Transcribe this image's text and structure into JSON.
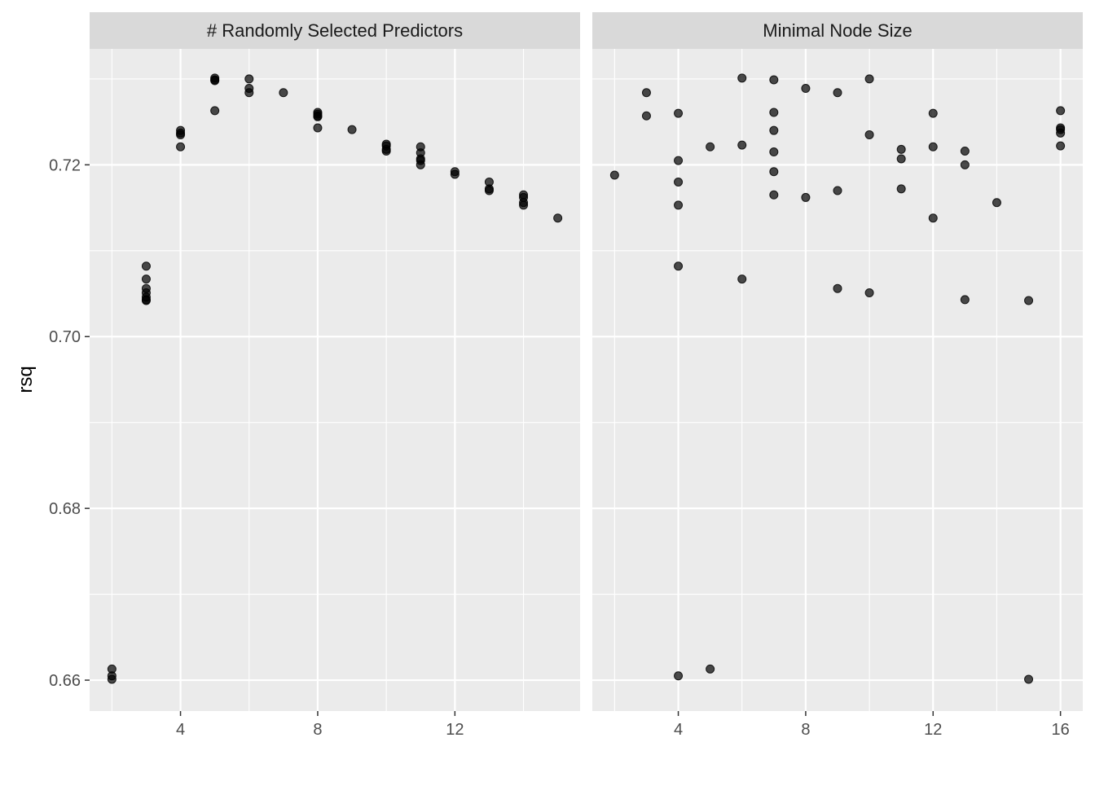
{
  "chart_data": [
    {
      "type": "scatter",
      "facet": "# Randomly Selected Predictors",
      "xlabel": "",
      "ylabel": "rsq",
      "xlim": [
        1.35,
        15.65
      ],
      "ylim": [
        0.6564,
        0.7335
      ],
      "xticks": [
        "4",
        "8",
        "12"
      ],
      "yticks": [
        "0.66",
        "0.68",
        "0.70",
        "0.72"
      ],
      "grid": true,
      "points": [
        [
          2,
          0.6613
        ],
        [
          2,
          0.6605
        ],
        [
          2,
          0.6601
        ],
        [
          3,
          0.7082
        ],
        [
          3,
          0.7067
        ],
        [
          3,
          0.7056
        ],
        [
          3,
          0.7051
        ],
        [
          3,
          0.7046
        ],
        [
          3,
          0.7043
        ],
        [
          3,
          0.7042
        ],
        [
          4,
          0.724
        ],
        [
          4,
          0.7237
        ],
        [
          4,
          0.7235
        ],
        [
          4,
          0.7221
        ],
        [
          5,
          0.7301
        ],
        [
          5,
          0.7299
        ],
        [
          5,
          0.7298
        ],
        [
          5,
          0.7263
        ],
        [
          6,
          0.73
        ],
        [
          6,
          0.7289
        ],
        [
          6,
          0.7284
        ],
        [
          7,
          0.7284
        ],
        [
          8,
          0.7261
        ],
        [
          8,
          0.7259
        ],
        [
          8,
          0.7257
        ],
        [
          8,
          0.7256
        ],
        [
          8,
          0.7243
        ],
        [
          9,
          0.7241
        ],
        [
          10,
          0.7224
        ],
        [
          10,
          0.7222
        ],
        [
          10,
          0.7218
        ],
        [
          10,
          0.7216
        ],
        [
          11,
          0.7221
        ],
        [
          11,
          0.7214
        ],
        [
          11,
          0.7207
        ],
        [
          11,
          0.7205
        ],
        [
          11,
          0.72
        ],
        [
          12,
          0.7192
        ],
        [
          12,
          0.7189
        ],
        [
          13,
          0.718
        ],
        [
          13,
          0.7172
        ],
        [
          13,
          0.717
        ],
        [
          14,
          0.7165
        ],
        [
          14,
          0.7162
        ],
        [
          14,
          0.7156
        ],
        [
          14,
          0.7153
        ],
        [
          15,
          0.7138
        ]
      ]
    },
    {
      "type": "scatter",
      "facet": "Minimal Node Size",
      "xlabel": "",
      "ylabel": "rsq",
      "xlim": [
        1.3,
        16.7
      ],
      "ylim": [
        0.6564,
        0.7335
      ],
      "xticks": [
        "4",
        "8",
        "12",
        "16"
      ],
      "yticks": [
        "0.66",
        "0.68",
        "0.70",
        "0.72"
      ],
      "grid": true,
      "points": [
        [
          2,
          0.7188
        ],
        [
          3,
          0.7284
        ],
        [
          3,
          0.7257
        ],
        [
          4,
          0.726
        ],
        [
          4,
          0.7205
        ],
        [
          4,
          0.718
        ],
        [
          4,
          0.7153
        ],
        [
          4,
          0.7082
        ],
        [
          4,
          0.6605
        ],
        [
          5,
          0.7221
        ],
        [
          5,
          0.6613
        ],
        [
          6,
          0.7301
        ],
        [
          6,
          0.7223
        ],
        [
          6,
          0.7067
        ],
        [
          7,
          0.7299
        ],
        [
          7,
          0.7261
        ],
        [
          7,
          0.724
        ],
        [
          7,
          0.7215
        ],
        [
          7,
          0.7192
        ],
        [
          7,
          0.7165
        ],
        [
          8,
          0.7289
        ],
        [
          8,
          0.7162
        ],
        [
          9,
          0.7284
        ],
        [
          9,
          0.717
        ],
        [
          9,
          0.7056
        ],
        [
          10,
          0.73
        ],
        [
          10,
          0.7235
        ],
        [
          10,
          0.7051
        ],
        [
          11,
          0.7218
        ],
        [
          11,
          0.7207
        ],
        [
          11,
          0.7172
        ],
        [
          12,
          0.726
        ],
        [
          12,
          0.7221
        ],
        [
          12,
          0.7138
        ],
        [
          13,
          0.7216
        ],
        [
          13,
          0.72
        ],
        [
          13,
          0.7043
        ],
        [
          14,
          0.7156
        ],
        [
          15,
          0.7042
        ],
        [
          15,
          0.6601
        ],
        [
          16,
          0.7263
        ],
        [
          16,
          0.7243
        ],
        [
          16,
          0.7241
        ],
        [
          16,
          0.7237
        ],
        [
          16,
          0.7222
        ]
      ]
    }
  ],
  "colors": {
    "panel_background": "#ebebeb",
    "strip_background": "#d9d9d9",
    "grid_line": "#ffffff",
    "point": "#000000",
    "tick_text": "#4d4d4d",
    "axis_title": "#000000",
    "strip_text": "#1a1a1a"
  }
}
